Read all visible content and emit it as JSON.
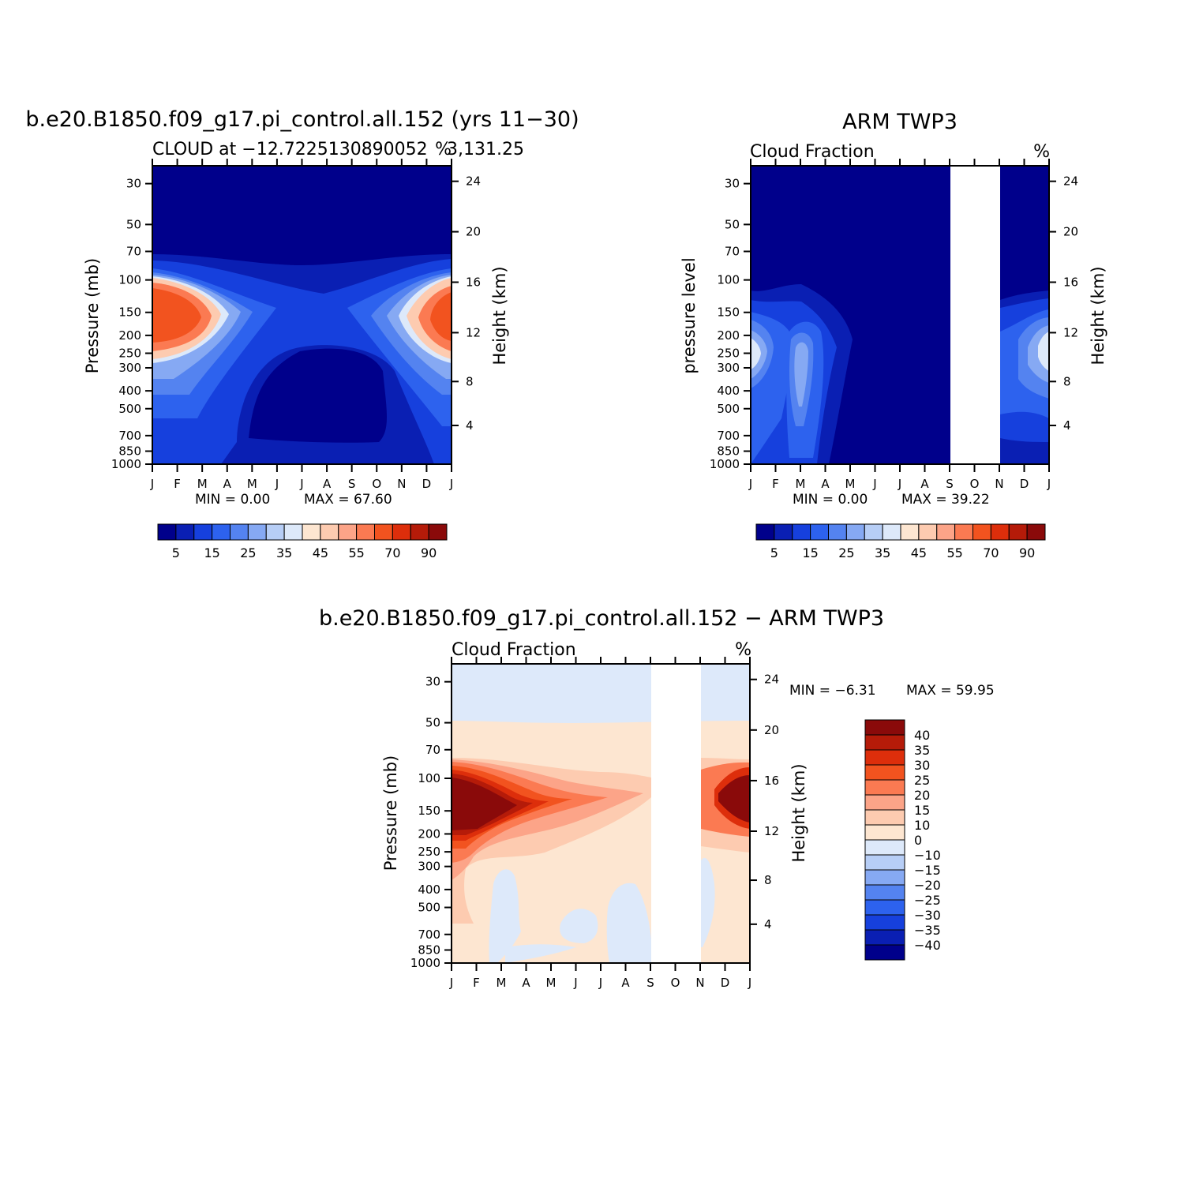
{
  "colors": {
    "background": "#ffffff",
    "frame": "#000000",
    "missing": "#ffffff"
  },
  "chart_data": [
    {
      "type": "heatmap",
      "title": "b.e20.B1850.f09_g17.pi_control.all.152 (yrs 11−30)",
      "left_label": "CLOUD at −12.7225130890052",
      "coords": "3,131.25",
      "units": "%",
      "ylabel": "Pressure (mb)",
      "ylabel_right": "Height (km)",
      "x_ticks": [
        "J",
        "F",
        "M",
        "A",
        "M",
        "J",
        "J",
        "A",
        "S",
        "O",
        "N",
        "D",
        "J"
      ],
      "y_ticks": [
        30,
        50,
        70,
        100,
        150,
        200,
        250,
        300,
        400,
        500,
        700,
        850,
        1000
      ],
      "y_log_scale": true,
      "ylim": [
        1000,
        24
      ],
      "right_ticks": [
        24,
        20,
        16,
        12,
        8,
        4
      ],
      "min_text": "MIN =    0.00",
      "max_text": "MAX =    67.60",
      "colorbar_labels": [
        "5",
        "15",
        "25",
        "35",
        "45",
        "55",
        "70",
        "90"
      ],
      "colorbar_colors": [
        "#00008b",
        "#0a1fb3",
        "#1640dd",
        "#2d62ee",
        "#5483f0",
        "#86a9f3",
        "#b7cef6",
        "#dde9fa",
        "#fde6d1",
        "#fdcbb0",
        "#fca488",
        "#fb7a52",
        "#f2531f",
        "#dd2e0b",
        "#b51b09",
        "#8a0a0a"
      ],
      "fields": [
        {
          "month": "J",
          "cloud_level_hpa": [
            150,
            200
          ],
          "peak_percent": 67.6
        },
        {
          "month": "J-A",
          "cloud_level_hpa": [
            100,
            150
          ],
          "peak_percent": 20
        }
      ]
    },
    {
      "type": "heatmap",
      "title": "ARM TWP3",
      "left_label": "Cloud Fraction",
      "units": "%",
      "ylabel": "pressure level",
      "ylabel_right": "Height (km)",
      "x_ticks": [
        "J",
        "F",
        "M",
        "A",
        "M",
        "J",
        "J",
        "A",
        "S",
        "O",
        "N",
        "D",
        "J"
      ],
      "y_ticks": [
        30,
        50,
        70,
        100,
        150,
        200,
        250,
        300,
        400,
        500,
        700,
        850,
        1000
      ],
      "y_log_scale": true,
      "ylim": [
        1000,
        24
      ],
      "right_ticks": [
        24,
        20,
        16,
        12,
        8,
        4
      ],
      "missing_months": [
        "S",
        "O"
      ],
      "min_text": "MIN =    0.00",
      "max_text": "MAX =    39.22",
      "colorbar_labels": [
        "5",
        "15",
        "25",
        "35",
        "45",
        "55",
        "70",
        "90"
      ],
      "colorbar_colors": [
        "#00008b",
        "#0a1fb3",
        "#1640dd",
        "#2d62ee",
        "#5483f0",
        "#86a9f3",
        "#b7cef6",
        "#dde9fa",
        "#fde6d1",
        "#fdcbb0",
        "#fca488",
        "#fb7a52",
        "#f2531f",
        "#dd2e0b",
        "#b51b09",
        "#8a0a0a"
      ],
      "fields": [
        {
          "month": "J",
          "cloud_level_hpa": [
            200,
            300
          ],
          "peak_percent": 39.22
        },
        {
          "month": "M",
          "cloud_level_hpa": [
            250,
            500
          ],
          "peak_percent": 30
        }
      ]
    },
    {
      "type": "heatmap",
      "title": "b.e20.B1850.f09_g17.pi_control.all.152 − ARM TWP3",
      "left_label": "Cloud Fraction",
      "units": "%",
      "ylabel": "Pressure (mb)",
      "ylabel_right": "Height (km)",
      "x_ticks": [
        "J",
        "F",
        "M",
        "A",
        "M",
        "J",
        "J",
        "A",
        "S",
        "O",
        "N",
        "D",
        "J"
      ],
      "y_ticks": [
        30,
        50,
        70,
        100,
        150,
        200,
        250,
        300,
        400,
        500,
        700,
        850,
        1000
      ],
      "y_log_scale": true,
      "ylim": [
        1000,
        24
      ],
      "right_ticks": [
        24,
        20,
        16,
        12,
        8,
        4
      ],
      "missing_months": [
        "S",
        "O"
      ],
      "min_text": "MIN =   −6.31",
      "max_text": "MAX =    59.95",
      "colorbar_labels": [
        "40",
        "35",
        "30",
        "25",
        "20",
        "15",
        "10",
        "0",
        "−10",
        "−15",
        "−20",
        "−25",
        "−30",
        "−35",
        "−40"
      ],
      "colorbar_colors": [
        "#8a0a0a",
        "#b51b09",
        "#dd2e0b",
        "#f2531f",
        "#fb7a52",
        "#fca488",
        "#fdcbb0",
        "#fde6d1",
        "#dde9fa",
        "#b7cef6",
        "#86a9f3",
        "#5483f0",
        "#2d62ee",
        "#1640dd",
        "#0a1fb3",
        "#00008b"
      ],
      "fields": [
        {
          "month": "F",
          "cloud_level_hpa": [
            100,
            200
          ],
          "peak_percent": 59.95
        },
        {
          "month": "J-D",
          "cloud_level_hpa": [
            30,
            50
          ],
          "peak_percent": -6.31
        }
      ]
    }
  ]
}
